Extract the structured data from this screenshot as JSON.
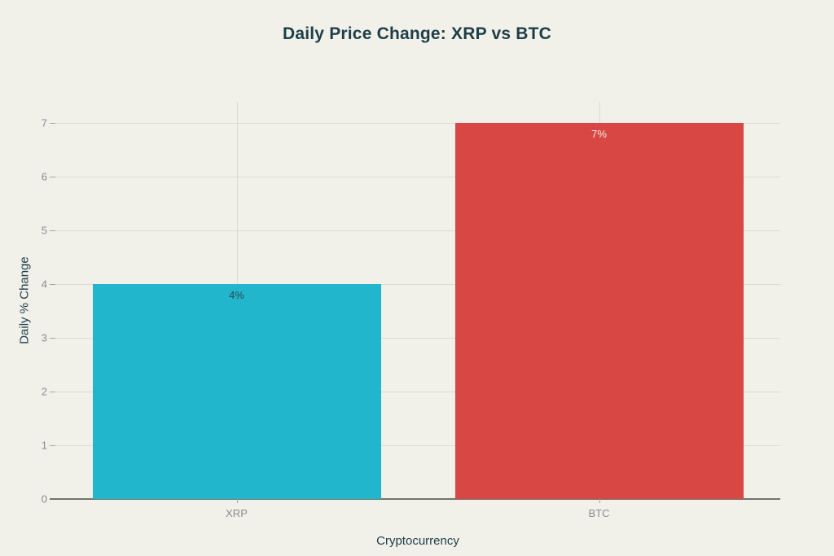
{
  "chart_data": {
    "type": "bar",
    "title": "Daily Price Change: XRP vs BTC",
    "categories": [
      "XRP",
      "BTC"
    ],
    "values": [
      4,
      7
    ],
    "value_labels": [
      "4%",
      "7%"
    ],
    "bar_colors": [
      "#22b6cd",
      "#d94744"
    ],
    "value_label_colors": [
      "#2e4a52",
      "#f6e9e5"
    ],
    "xlabel": "Cryptocurrency",
    "ylabel": "Daily % Change",
    "ylim": [
      0,
      7.4
    ],
    "yticks": [
      0,
      1,
      2,
      3,
      4,
      5,
      6,
      7
    ],
    "grid": true,
    "legend": false,
    "colors": {
      "background": "#f1f0e9",
      "title_text": "#1d3e49",
      "tick_text": "#8b8e8c",
      "gridline": "#dddbd1",
      "axis_line": "#72736b"
    }
  }
}
